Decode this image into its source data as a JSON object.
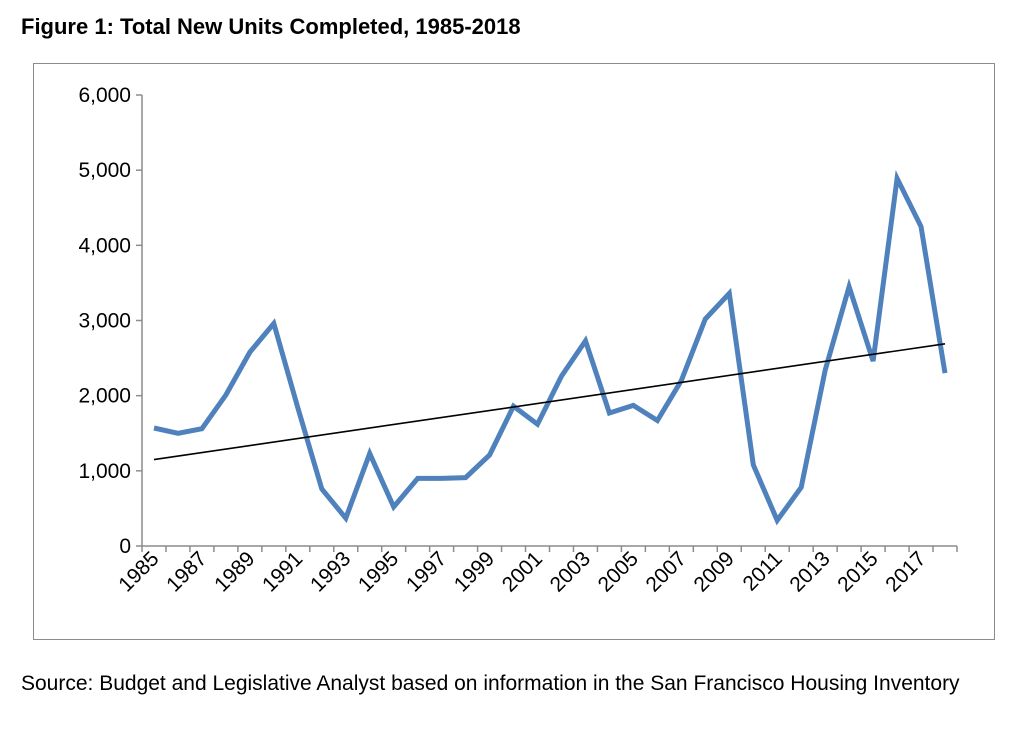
{
  "figure": {
    "title": "Figure 1: Total New Units Completed, 1985-2018",
    "source": "Source: Budget and Legislative Analyst based on information in the San Francisco Housing Inventory"
  },
  "chart_data": {
    "type": "line",
    "title": "Figure 1: Total New Units Completed, 1985-2018",
    "xlabel": "",
    "ylabel": "",
    "ylim": [
      0,
      6000
    ],
    "y_ticks": [
      0,
      1000,
      2000,
      3000,
      4000,
      5000,
      6000
    ],
    "y_tick_labels": [
      "0",
      "1,000",
      "2,000",
      "3,000",
      "4,000",
      "5,000",
      "6,000"
    ],
    "x_tick_labels": [
      "1985",
      "1987",
      "1989",
      "1991",
      "1993",
      "1995",
      "1997",
      "1999",
      "2001",
      "2003",
      "2005",
      "2007",
      "2009",
      "2011",
      "2013",
      "2015",
      "2017"
    ],
    "grid": false,
    "legend": "none",
    "series": [
      {
        "name": "Total New Units Completed",
        "color": "#4f81bd",
        "x": [
          1985,
          1986,
          1987,
          1988,
          1989,
          1990,
          1991,
          1992,
          1993,
          1994,
          1995,
          1996,
          1997,
          1998,
          1999,
          2000,
          2001,
          2002,
          2003,
          2004,
          2005,
          2006,
          2007,
          2008,
          2009,
          2010,
          2011,
          2012,
          2013,
          2014,
          2015,
          2016,
          2017,
          2018
        ],
        "values": [
          1570,
          1500,
          1560,
          2010,
          2580,
          2960,
          1840,
          760,
          370,
          1230,
          520,
          900,
          900,
          910,
          1210,
          1860,
          1620,
          2260,
          2730,
          1770,
          1870,
          1670,
          2200,
          3020,
          3360,
          1080,
          340,
          780,
          2340,
          3450,
          2460,
          4890,
          4250,
          2300
        ]
      },
      {
        "name": "Linear trend",
        "color": "#000000",
        "x": [
          1985,
          2018
        ],
        "values": [
          1150,
          2690
        ]
      }
    ]
  }
}
